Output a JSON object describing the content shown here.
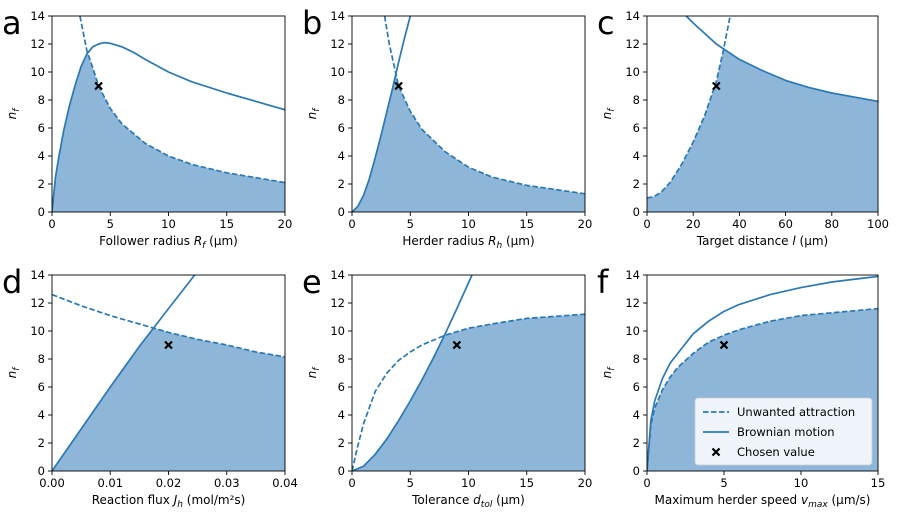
{
  "figure": {
    "legend": {
      "entries": [
        {
          "label": "Unwanted attraction",
          "style": "dashed"
        },
        {
          "label": "Brownian motion",
          "style": "solid"
        },
        {
          "label": "Chosen value",
          "style": "marker-x"
        }
      ],
      "placement": "lower-right",
      "panel": "f"
    },
    "colors": {
      "line": "#2a78b4",
      "fill": "#8db6d9",
      "marker": "#000000"
    }
  },
  "chart_data": [
    {
      "panel": "a",
      "type": "area",
      "xlabel_parts": [
        "Follower radius ",
        "R",
        "f",
        " (μm)"
      ],
      "ylabel": "n_f",
      "xlim": [
        0,
        20
      ],
      "ylim": [
        0,
        14
      ],
      "xticks": [
        "0",
        "5",
        "10",
        "15",
        "20"
      ],
      "yticks": [
        "0",
        "2",
        "4",
        "6",
        "8",
        "10",
        "12",
        "14"
      ],
      "series": [
        {
          "name": "Unwanted attraction",
          "style": "dashed",
          "x": [
            2.4,
            3,
            3.5,
            4,
            5,
            6,
            8,
            10,
            12,
            15,
            20
          ],
          "y": [
            14,
            11.5,
            10.3,
            9,
            7.4,
            6.3,
            4.9,
            4.0,
            3.4,
            2.8,
            2.1
          ]
        },
        {
          "name": "Brownian motion",
          "style": "solid",
          "x": [
            0,
            0.3,
            0.6,
            1,
            1.5,
            2,
            2.5,
            3,
            3.5,
            4,
            4.5,
            5,
            6,
            7,
            8,
            10,
            12,
            15,
            20
          ],
          "y": [
            0,
            2.5,
            4.0,
            5.8,
            7.6,
            9.1,
            10.4,
            11.3,
            11.8,
            12.0,
            12.1,
            12.05,
            11.8,
            11.4,
            10.9,
            10.0,
            9.3,
            8.5,
            7.3
          ]
        }
      ],
      "chosen": {
        "x": 4,
        "y": 9
      }
    },
    {
      "panel": "b",
      "type": "area",
      "xlabel_parts": [
        "Herder radius ",
        "R",
        "h",
        " (μm)"
      ],
      "ylabel": "n_f",
      "xlim": [
        0,
        20
      ],
      "ylim": [
        0,
        14
      ],
      "xticks": [
        "0",
        "5",
        "10",
        "15",
        "20"
      ],
      "yticks": [
        "0",
        "2",
        "4",
        "6",
        "8",
        "10",
        "12",
        "14"
      ],
      "series": [
        {
          "name": "Unwanted attraction",
          "style": "dashed",
          "x": [
            2.8,
            3.2,
            3.6,
            4,
            5,
            6,
            8,
            10,
            12,
            15,
            20
          ],
          "y": [
            14,
            12,
            10.5,
            9.0,
            7.2,
            5.9,
            4.3,
            3.2,
            2.5,
            1.9,
            1.3
          ]
        },
        {
          "name": "Brownian motion",
          "style": "solid",
          "x": [
            0,
            0.5,
            1,
            1.5,
            2,
            2.5,
            3,
            3.5,
            4,
            4.5,
            5
          ],
          "y": [
            0,
            0.4,
            1.2,
            2.4,
            3.9,
            5.5,
            7.2,
            8.9,
            10.7,
            12.4,
            14
          ]
        }
      ],
      "chosen": {
        "x": 4,
        "y": 9
      }
    },
    {
      "panel": "c",
      "type": "area",
      "xlabel_parts": [
        "Target distance ",
        "l",
        "",
        " (μm)"
      ],
      "ylabel": "n_f",
      "xlim": [
        0,
        100
      ],
      "ylim": [
        0,
        14
      ],
      "xticks": [
        "0",
        "20",
        "40",
        "60",
        "80",
        "100"
      ],
      "yticks": [
        "0",
        "2",
        "4",
        "6",
        "8",
        "10",
        "12",
        "14"
      ],
      "series": [
        {
          "name": "Unwanted attraction",
          "style": "dashed",
          "x": [
            0,
            3,
            6,
            10,
            15,
            20,
            25,
            30,
            33,
            36
          ],
          "y": [
            1.0,
            1.1,
            1.4,
            2.1,
            3.4,
            5.0,
            6.9,
            9.3,
            11.5,
            14
          ]
        },
        {
          "name": "Brownian motion",
          "style": "solid",
          "x": [
            17,
            20,
            30,
            40,
            50,
            60,
            70,
            80,
            90,
            100
          ],
          "y": [
            14,
            13.5,
            12.0,
            10.9,
            10.1,
            9.4,
            8.9,
            8.5,
            8.2,
            7.9
          ]
        }
      ],
      "chosen": {
        "x": 30,
        "y": 9
      }
    },
    {
      "panel": "d",
      "type": "area",
      "xlabel_parts": [
        "Reaction flux ",
        "J",
        "h",
        " (mol/m²s)"
      ],
      "ylabel": "n_f",
      "xlim": [
        0,
        0.04
      ],
      "ylim": [
        0,
        14
      ],
      "xticks": [
        "0.00",
        "0.01",
        "0.02",
        "0.03",
        "0.04"
      ],
      "yticks": [
        "0",
        "2",
        "4",
        "6",
        "8",
        "10",
        "12",
        "14"
      ],
      "series": [
        {
          "name": "Unwanted attraction",
          "style": "dashed",
          "x": [
            0,
            0.005,
            0.01,
            0.015,
            0.02,
            0.025,
            0.03,
            0.035,
            0.04
          ],
          "y": [
            12.6,
            11.8,
            11.1,
            10.5,
            9.9,
            9.4,
            9.0,
            8.5,
            8.15
          ]
        },
        {
          "name": "Brownian motion",
          "style": "solid",
          "x": [
            0,
            0.005,
            0.01,
            0.015,
            0.02,
            0.0245
          ],
          "y": [
            0,
            3.0,
            6.0,
            8.9,
            11.6,
            14
          ]
        }
      ],
      "chosen": {
        "x": 0.02,
        "y": 9
      }
    },
    {
      "panel": "e",
      "type": "area",
      "xlabel_parts": [
        "Tolerance ",
        "d",
        "tol",
        " (μm)"
      ],
      "ylabel": "n_f",
      "xlim": [
        0,
        20
      ],
      "ylim": [
        0,
        14
      ],
      "xticks": [
        "0",
        "5",
        "10",
        "15",
        "20"
      ],
      "yticks": [
        "0",
        "2",
        "4",
        "6",
        "8",
        "10",
        "12",
        "14"
      ],
      "series": [
        {
          "name": "Unwanted attraction",
          "style": "dashed",
          "x": [
            0,
            0.5,
            1,
            2,
            3,
            4,
            5,
            6,
            8,
            10,
            12,
            15,
            20
          ],
          "y": [
            0,
            1.8,
            3.4,
            5.7,
            7.0,
            7.9,
            8.5,
            9.0,
            9.7,
            10.2,
            10.5,
            10.9,
            11.2
          ]
        },
        {
          "name": "Brownian motion",
          "style": "solid",
          "x": [
            0,
            1,
            2,
            3,
            4,
            5,
            6,
            7,
            8,
            9,
            10.3
          ],
          "y": [
            0,
            0.35,
            1.2,
            2.3,
            3.6,
            5.0,
            6.5,
            8.1,
            9.8,
            11.6,
            14
          ]
        }
      ],
      "chosen": {
        "x": 9,
        "y": 9
      }
    },
    {
      "panel": "f",
      "type": "area",
      "xlabel_parts": [
        "Maximum herder speed ",
        "v",
        "max",
        " (μm/s)"
      ],
      "ylabel": "n_f",
      "xlim": [
        0,
        15
      ],
      "ylim": [
        0,
        14
      ],
      "xticks": [
        "0",
        "5",
        "10",
        "15"
      ],
      "yticks": [
        "0",
        "2",
        "4",
        "6",
        "8",
        "10",
        "12",
        "14"
      ],
      "series": [
        {
          "name": "Unwanted attraction",
          "style": "dashed",
          "x": [
            0,
            0.25,
            0.5,
            1,
            1.5,
            2,
            3,
            4,
            5,
            6,
            8,
            10,
            12,
            15
          ],
          "y": [
            0,
            3.3,
            4.5,
            5.8,
            6.7,
            7.4,
            8.4,
            9.2,
            9.7,
            10.1,
            10.7,
            11.1,
            11.3,
            11.6
          ]
        },
        {
          "name": "Brownian motion",
          "style": "solid",
          "x": [
            0,
            0.25,
            0.5,
            1,
            1.5,
            2,
            3,
            4,
            5,
            6,
            8,
            10,
            12,
            15
          ],
          "y": [
            0,
            3.6,
            5.0,
            6.6,
            7.7,
            8.4,
            9.8,
            10.7,
            11.4,
            11.9,
            12.6,
            13.1,
            13.5,
            13.9
          ]
        }
      ],
      "chosen": {
        "x": 5,
        "y": 9
      }
    }
  ]
}
